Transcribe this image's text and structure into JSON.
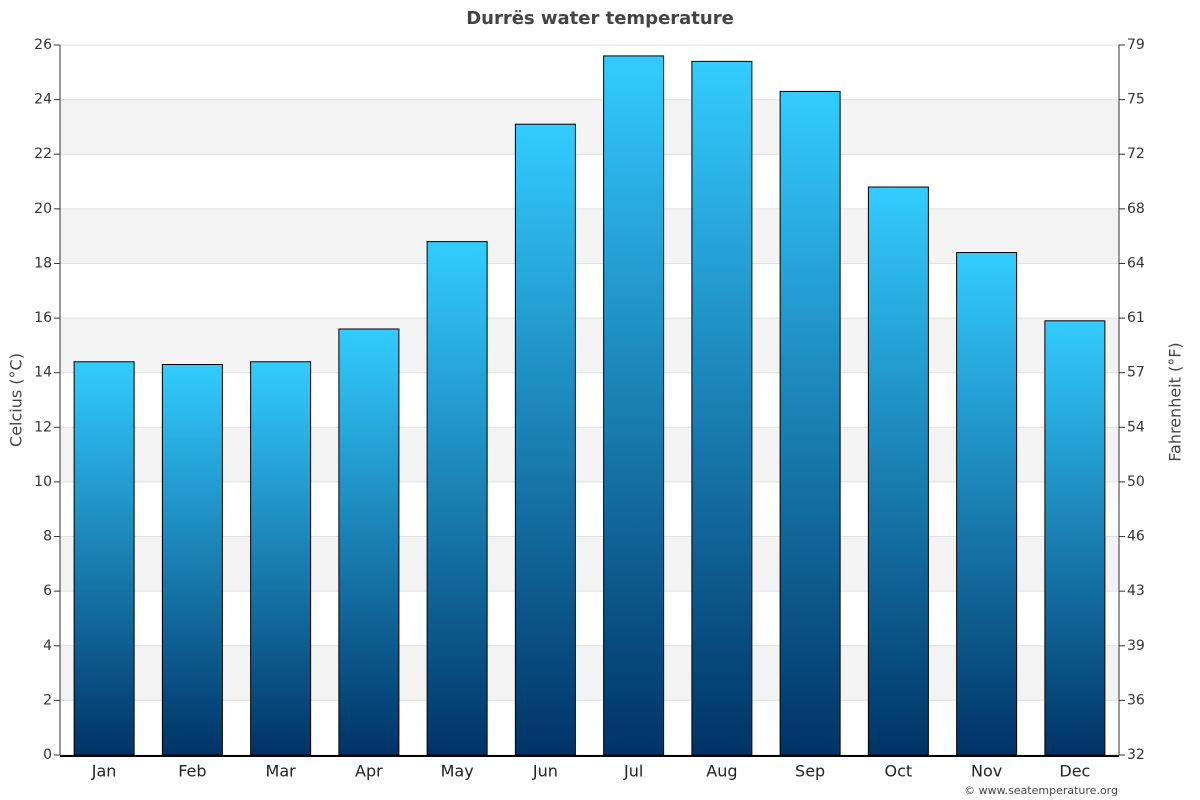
{
  "chart_data": {
    "type": "bar",
    "title": "Durrës water temperature",
    "categories": [
      "Jan",
      "Feb",
      "Mar",
      "Apr",
      "May",
      "Jun",
      "Jul",
      "Aug",
      "Sep",
      "Oct",
      "Nov",
      "Dec"
    ],
    "values": [
      14.4,
      14.3,
      14.4,
      15.6,
      18.8,
      23.1,
      25.6,
      25.4,
      24.3,
      20.8,
      18.4,
      15.9
    ],
    "color_top": "#33ccff",
    "color_bottom": "#003366",
    "ylabel": "Celcius (°C)",
    "y2label": "Fahrenheit (°F)",
    "ylim": [
      0,
      26
    ],
    "yticks": [
      0,
      2,
      4,
      6,
      8,
      10,
      12,
      14,
      16,
      18,
      20,
      22,
      24,
      26
    ],
    "y2lim": [
      32,
      78.8
    ],
    "y2ticks": [
      32,
      {
        "value": 35.6,
        "label": "36"
      },
      {
        "value": 39.2,
        "label": "39"
      },
      {
        "value": 42.8,
        "label": "43"
      },
      {
        "value": 46.4,
        "label": "46"
      },
      50,
      {
        "value": 53.6,
        "label": "54"
      },
      {
        "value": 57.2,
        "label": "57"
      },
      {
        "value": 60.8,
        "label": "61"
      },
      {
        "value": 64.4,
        "label": "64"
      },
      68,
      {
        "value": 71.6,
        "label": "72"
      },
      {
        "value": 75.2,
        "label": "75"
      },
      {
        "value": 78.8,
        "label": "79"
      }
    ],
    "grid": true,
    "banded_background": true,
    "source": "© www.seatemperature.org"
  }
}
